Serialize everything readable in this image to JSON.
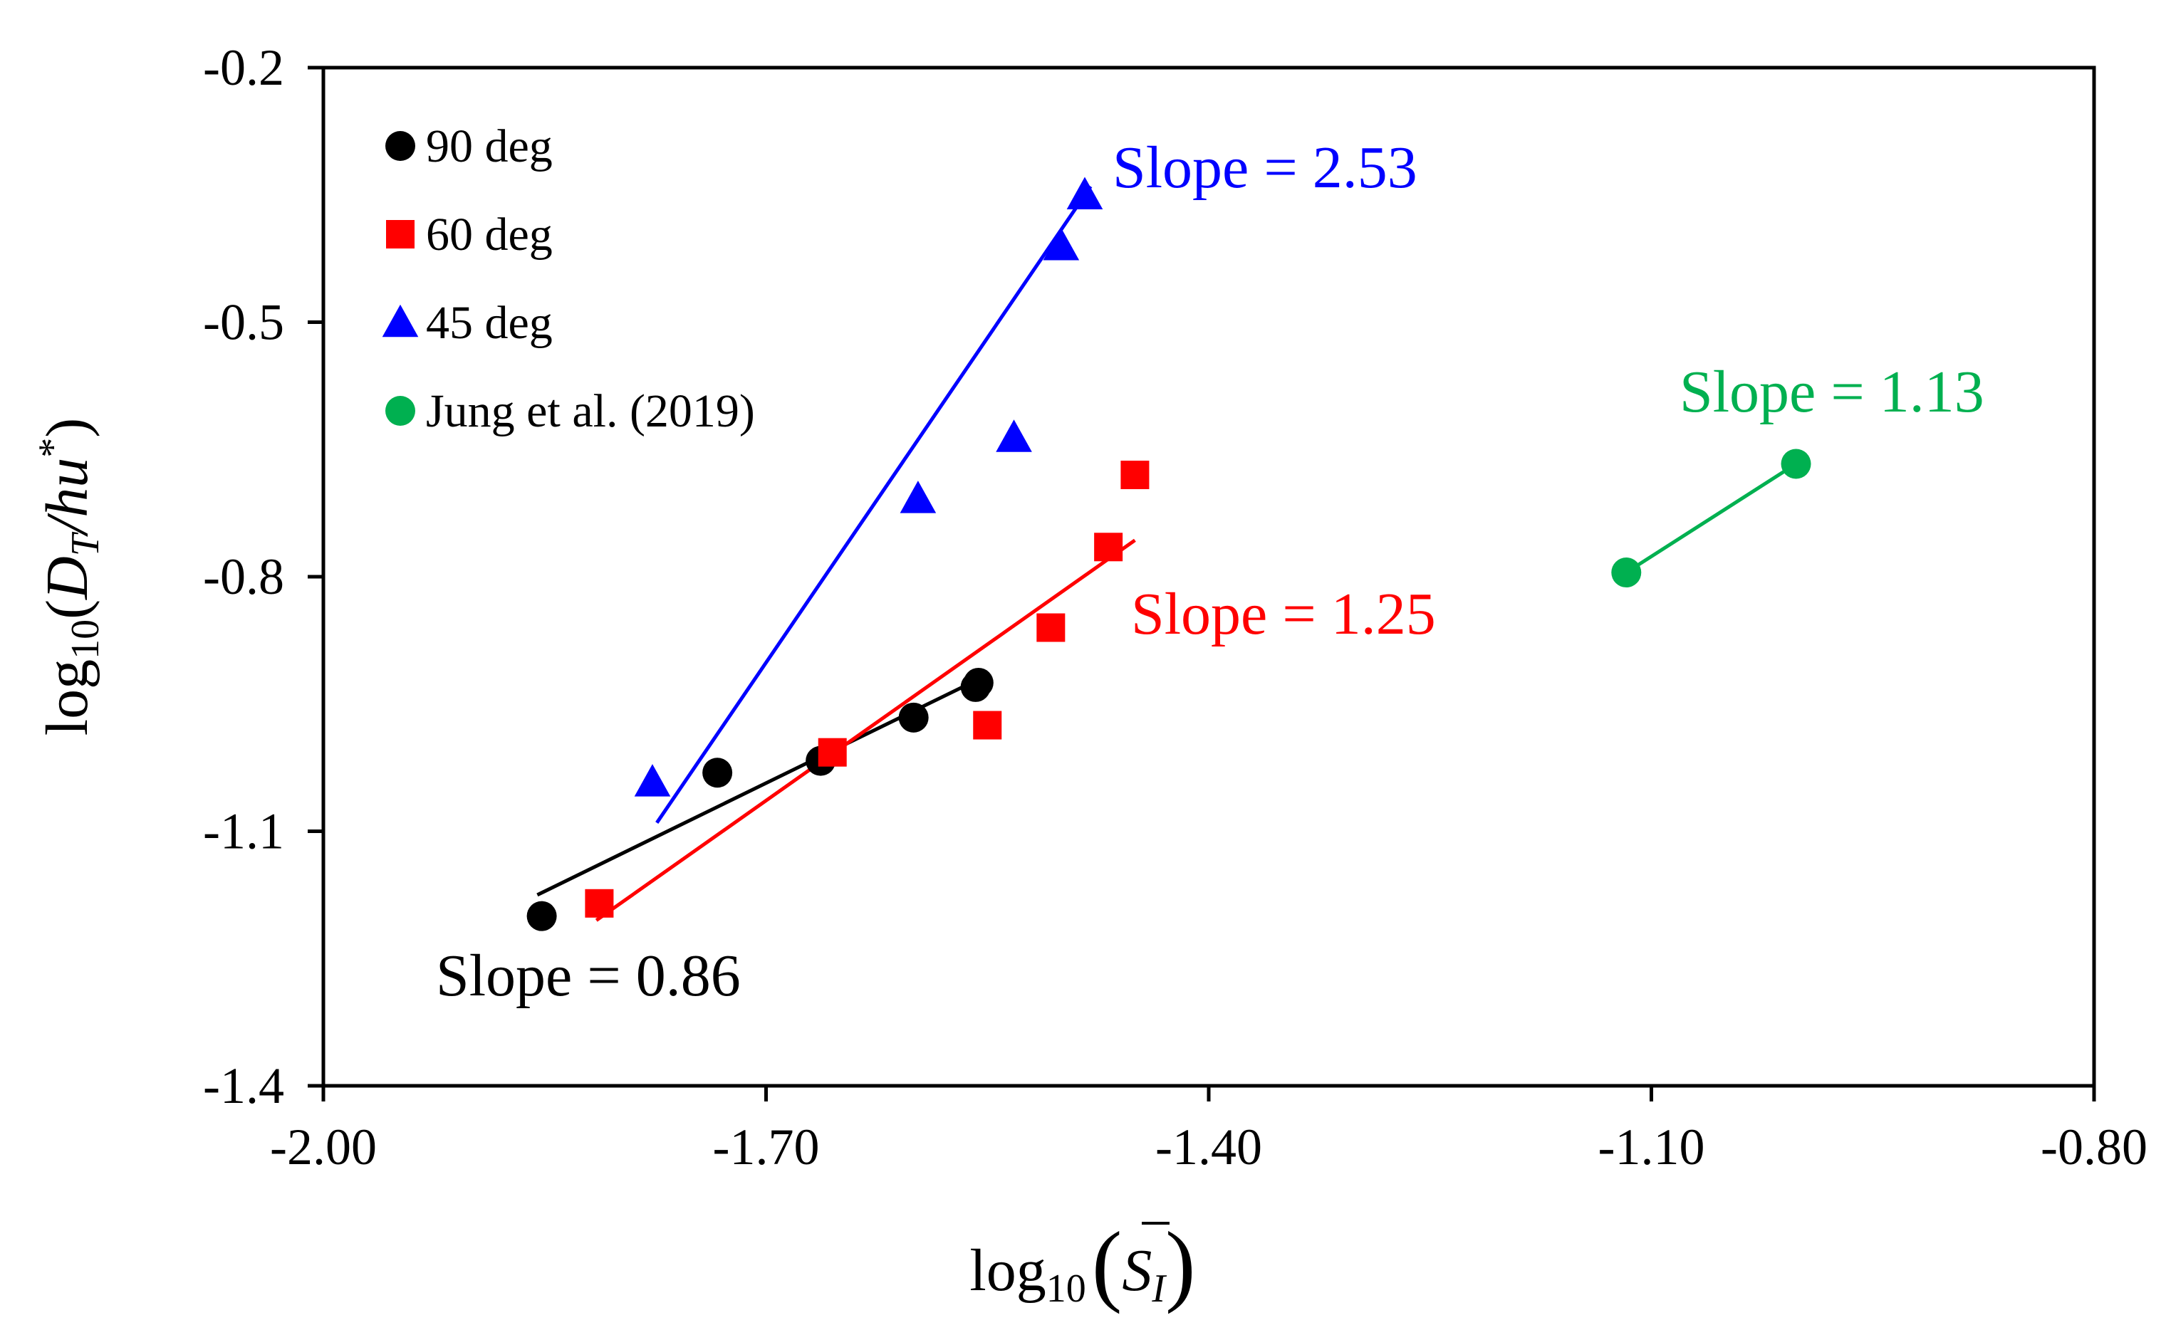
{
  "chart_data": {
    "type": "scatter",
    "xlim": [
      -2.0,
      -0.8
    ],
    "ylim": [
      -1.4,
      -0.2
    ],
    "xticks": [
      -2.0,
      -1.7,
      -1.4,
      -1.1,
      -0.8
    ],
    "yticks": [
      -1.4,
      -1.1,
      -0.8,
      -0.5,
      -0.2
    ],
    "xtick_labels": [
      "-2.00",
      "-1.70",
      "-1.40",
      "-1.10",
      "-0.80"
    ],
    "ytick_labels": [
      "-1.4",
      "-1.1",
      "-0.8",
      "-0.5",
      "-0.2"
    ],
    "xlabel": {
      "prefix": "log",
      "sub": "10",
      "symbol": "S",
      "symbol_sub": "I"
    },
    "ylabel": {
      "prefix": "log",
      "sub": "10",
      "open": "(",
      "d": "D",
      "d_sub": "T",
      "mid": "/hu",
      "sup": "*",
      "close": ")"
    },
    "grid": false,
    "legend_position": "top-left",
    "series": [
      {
        "name": "90 deg",
        "marker": "circle",
        "color": "#000000",
        "x": [
          -1.852,
          -1.733,
          -1.663,
          -1.6,
          -1.558,
          -1.556
        ],
        "y": [
          -1.2,
          -1.031,
          -1.017,
          -0.966,
          -0.93,
          -0.925
        ],
        "fit": {
          "x": [
            -1.855,
            -1.555
          ],
          "y": [
            -1.175,
            -0.92
          ]
        },
        "annotation": "Slope = 0.86"
      },
      {
        "name": "60 deg",
        "marker": "square",
        "color": "#ff0000",
        "x": [
          -1.813,
          -1.655,
          -1.55,
          -1.507,
          -1.468,
          -1.45
        ],
        "y": [
          -1.185,
          -1.007,
          -0.975,
          -0.86,
          -0.765,
          -0.68
        ],
        "fit": {
          "x": [
            -1.815,
            -1.45
          ],
          "y": [
            -1.205,
            -0.757
          ]
        },
        "annotation": "Slope = 1.25"
      },
      {
        "name": "45 deg",
        "marker": "triangle",
        "color": "#0000ff",
        "x": [
          -1.777,
          -1.597,
          -1.532,
          -1.5,
          -1.484
        ],
        "y": [
          -1.042,
          -0.708,
          -0.636,
          -0.41,
          -0.35
        ],
        "fit": {
          "x": [
            -1.774,
            -1.48
          ],
          "y": [
            -1.09,
            -0.34
          ]
        },
        "annotation": "Slope = 2.53"
      },
      {
        "name": "Jung et al. (2019)",
        "marker": "circle",
        "color": "#00b050",
        "x": [
          -1.117,
          -1.002
        ],
        "y": [
          -0.795,
          -0.667
        ],
        "fit": {
          "x": [
            -1.117,
            -1.002
          ],
          "y": [
            -0.795,
            -0.667
          ]
        },
        "annotation": "Slope = 1.13"
      }
    ]
  }
}
